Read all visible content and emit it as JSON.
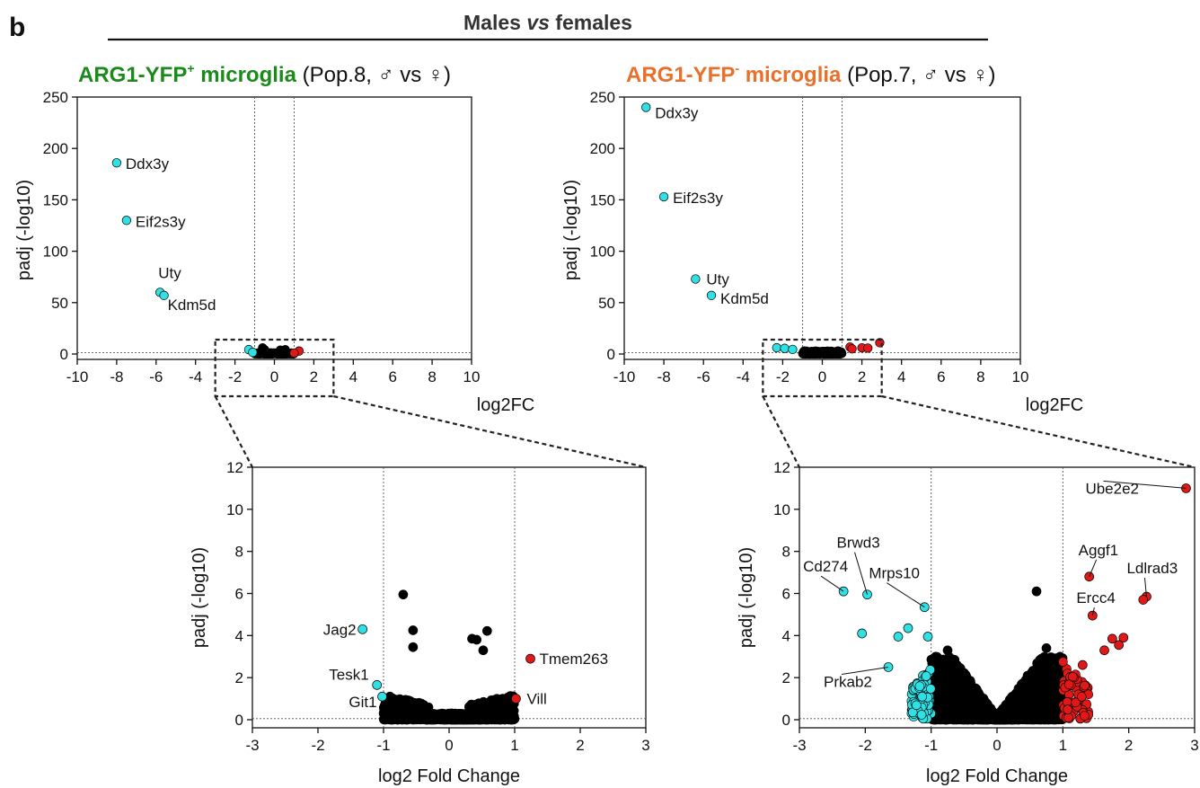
{
  "panel_label": "b",
  "header": "Males vs females",
  "header_parts": {
    "pre": "Males ",
    "vs": "vs",
    "post": " females"
  },
  "title_left": {
    "cell": "ARG1-YFP",
    "sup": "+",
    "tail": " microglia",
    "pop": " (Pop.8, ♂ vs ♀)",
    "color": "#1a8a1a"
  },
  "title_right": {
    "cell": "ARG1-YFP",
    "sup": "-",
    "tail": " microglia",
    "pop": " (Pop.7, ♂ vs ♀)",
    "color": "#e8702a"
  },
  "colors": {
    "down": "#2fe0e4",
    "up": "#e01818",
    "ns": "#000000"
  },
  "chart_data": [
    {
      "id": "top-left",
      "type": "scatter",
      "xlabel": "log2FC",
      "ylabel": "padj (-log10)",
      "xlim": [
        -10,
        10
      ],
      "ylim": [
        0,
        250
      ],
      "xticks": [
        -10,
        -8,
        -6,
        -4,
        -2,
        0,
        2,
        4,
        6,
        8,
        10
      ],
      "yticks": [
        0,
        50,
        100,
        150,
        200,
        250
      ],
      "thresholds_x": [
        -1,
        1
      ],
      "threshold_y": 1.3,
      "points": [
        {
          "x": -8.0,
          "y": 186,
          "c": "down",
          "label": "Ddx3y"
        },
        {
          "x": -7.5,
          "y": 130,
          "c": "down",
          "label": "Eif2s3y"
        },
        {
          "x": -5.8,
          "y": 60,
          "c": "down",
          "label": "Uty"
        },
        {
          "x": -5.6,
          "y": 57,
          "c": "down",
          "label": "Kdm5d"
        },
        {
          "x": -1.3,
          "y": 4.3,
          "c": "down"
        },
        {
          "x": -1.1,
          "y": 1.6,
          "c": "down"
        },
        {
          "x": -0.6,
          "y": 6,
          "c": "ns"
        },
        {
          "x": -0.5,
          "y": 4.2,
          "c": "ns"
        },
        {
          "x": 0.3,
          "y": 3.8,
          "c": "ns"
        },
        {
          "x": 0.55,
          "y": 4.2,
          "c": "ns"
        },
        {
          "x": 1.25,
          "y": 2.9,
          "c": "up"
        },
        {
          "x": 1.0,
          "y": 1.0,
          "c": "up"
        }
      ],
      "ns_cloud": {
        "xmin": -1.0,
        "xmax": 1.0,
        "ymax": 1.2,
        "count": 120
      }
    },
    {
      "id": "top-right",
      "type": "scatter",
      "xlabel": "log2FC",
      "ylabel": "padj (-log10)",
      "xlim": [
        -10,
        10
      ],
      "ylim": [
        0,
        250
      ],
      "xticks": [
        -10,
        -8,
        -6,
        -4,
        -2,
        0,
        2,
        4,
        6,
        8,
        10
      ],
      "yticks": [
        0,
        50,
        100,
        150,
        200,
        250
      ],
      "thresholds_x": [
        -1,
        1
      ],
      "threshold_y": 1.3,
      "points": [
        {
          "x": -8.9,
          "y": 240,
          "c": "down",
          "label": "Ddx3y"
        },
        {
          "x": -8.0,
          "y": 153,
          "c": "down",
          "label": "Eif2s3y"
        },
        {
          "x": -6.4,
          "y": 73,
          "c": "down",
          "label": "Uty"
        },
        {
          "x": -5.6,
          "y": 57,
          "c": "down",
          "label": "Kdm5d"
        },
        {
          "x": -2.3,
          "y": 6.1,
          "c": "down"
        },
        {
          "x": -1.9,
          "y": 5.5,
          "c": "down"
        },
        {
          "x": -1.5,
          "y": 4.5,
          "c": "down"
        },
        {
          "x": 1.4,
          "y": 6.8,
          "c": "up"
        },
        {
          "x": 2.0,
          "y": 6.0,
          "c": "up"
        },
        {
          "x": 2.9,
          "y": 11,
          "c": "up"
        },
        {
          "x": 2.3,
          "y": 5.8,
          "c": "up"
        },
        {
          "x": 1.5,
          "y": 5.0,
          "c": "up"
        }
      ],
      "ns_cloud": {
        "xmin": -1.0,
        "xmax": 1.0,
        "ymax": 3.0,
        "count": 160
      }
    },
    {
      "id": "bottom-left",
      "type": "scatter",
      "xlabel": "log2 Fold Change",
      "ylabel": "padj (-log10)",
      "xlim": [
        -3,
        3
      ],
      "ylim": [
        0,
        12
      ],
      "xticks": [
        -3,
        -2,
        -1,
        0,
        1,
        2,
        3
      ],
      "yticks": [
        0,
        2,
        4,
        6,
        8,
        10,
        12
      ],
      "thresholds_x": [
        -1,
        1
      ],
      "threshold_y": 0.05,
      "points": [
        {
          "x": -1.32,
          "y": 4.3,
          "c": "down",
          "label": "Jag2"
        },
        {
          "x": -1.1,
          "y": 1.65,
          "c": "down",
          "label": "Tesk1"
        },
        {
          "x": -1.02,
          "y": 1.1,
          "c": "down",
          "label": "Git1"
        },
        {
          "x": 1.24,
          "y": 2.9,
          "c": "up",
          "label": "Tmem263"
        },
        {
          "x": 1.02,
          "y": 1.0,
          "c": "up",
          "label": "Vill"
        },
        {
          "x": -0.7,
          "y": 5.95,
          "c": "ns"
        },
        {
          "x": -0.55,
          "y": 4.25,
          "c": "ns"
        },
        {
          "x": -0.55,
          "y": 3.45,
          "c": "ns"
        },
        {
          "x": 0.35,
          "y": 3.85,
          "c": "ns"
        },
        {
          "x": 0.42,
          "y": 3.8,
          "c": "ns"
        },
        {
          "x": 0.58,
          "y": 4.22,
          "c": "ns"
        },
        {
          "x": 0.52,
          "y": 3.3,
          "c": "ns"
        }
      ],
      "ns_cloud": {
        "xmin": -1.0,
        "xmax": 1.0,
        "ymax": 1.2,
        "count": 1400,
        "shape": "flat"
      }
    },
    {
      "id": "bottom-right",
      "type": "scatter",
      "xlabel": "log2 Fold Change",
      "ylabel": "padj (-log10)",
      "xlim": [
        -3,
        3
      ],
      "ylim": [
        0,
        12
      ],
      "xticks": [
        -3,
        -2,
        -1,
        0,
        1,
        2,
        3
      ],
      "yticks": [
        0,
        2,
        4,
        6,
        8,
        10,
        12
      ],
      "thresholds_x": [
        -1,
        1
      ],
      "threshold_y": 0.05,
      "points": [
        {
          "x": -2.33,
          "y": 6.1,
          "c": "down",
          "label": "Cd274"
        },
        {
          "x": -1.97,
          "y": 5.95,
          "c": "down",
          "label": "Brwd3"
        },
        {
          "x": -1.1,
          "y": 5.35,
          "c": "down",
          "label": "Mrps10"
        },
        {
          "x": -1.65,
          "y": 2.5,
          "c": "down",
          "label": "Prkab2"
        },
        {
          "x": -2.05,
          "y": 4.1,
          "c": "down"
        },
        {
          "x": -1.5,
          "y": 3.95,
          "c": "down"
        },
        {
          "x": -1.35,
          "y": 4.35,
          "c": "down"
        },
        {
          "x": -1.05,
          "y": 3.95,
          "c": "down"
        },
        {
          "x": 2.87,
          "y": 11.0,
          "c": "up",
          "label": "Ube2e2"
        },
        {
          "x": 1.4,
          "y": 6.8,
          "c": "up",
          "label": "Aggf1"
        },
        {
          "x": 1.45,
          "y": 4.95,
          "c": "up",
          "label": "Ercc4"
        },
        {
          "x": 2.27,
          "y": 5.85,
          "c": "up",
          "label": "Ldlrad3"
        },
        {
          "x": 2.22,
          "y": 5.7,
          "c": "up"
        },
        {
          "x": 1.75,
          "y": 3.85,
          "c": "up"
        },
        {
          "x": 1.92,
          "y": 3.9,
          "c": "up"
        },
        {
          "x": 1.85,
          "y": 3.55,
          "c": "up"
        },
        {
          "x": 1.63,
          "y": 3.3,
          "c": "up"
        },
        {
          "x": 1.3,
          "y": 2.6,
          "c": "up"
        },
        {
          "x": 0.6,
          "y": 6.1,
          "c": "ns"
        },
        {
          "x": -0.75,
          "y": 3.3,
          "c": "ns"
        },
        {
          "x": 0.75,
          "y": 3.4,
          "c": "ns"
        }
      ],
      "ns_cloud": {
        "xmin": -1.0,
        "xmax": 1.0,
        "ymax": 3.0,
        "count": 2600,
        "shape": "v"
      },
      "edge_clouds": {
        "down_count": 90,
        "up_count": 70
      }
    }
  ]
}
